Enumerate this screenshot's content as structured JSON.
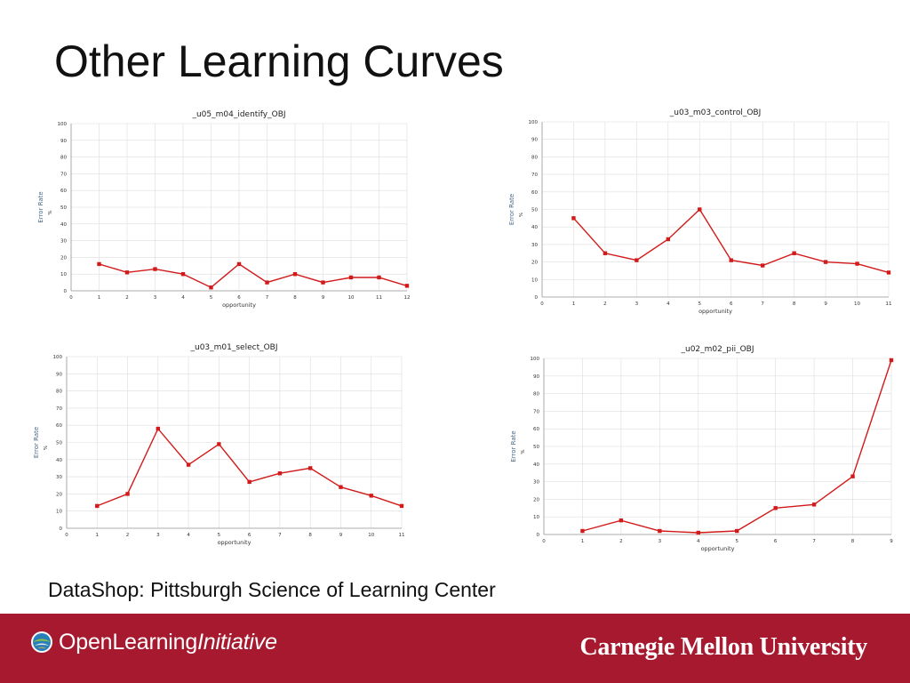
{
  "slide": {
    "title": "Other Learning Curves",
    "credit": "DataShop:  Pittsburgh Science of Learning Center"
  },
  "footer": {
    "logo_left_part1": "OpenLearning",
    "logo_left_part2": "Initiative",
    "logo_right": "Carnegie Mellon University",
    "background_color": "#a6192e"
  },
  "colors": {
    "line": "#d21a1a",
    "grid": "#dddddd",
    "axis": "#999999"
  },
  "chart_data": [
    {
      "type": "line",
      "title": "_u05_m04_identify_OBJ",
      "xlabel": "opportunity",
      "ylabel": "Error Rate",
      "yunit": "%",
      "xlim": [
        0,
        12
      ],
      "ylim": [
        0,
        100
      ],
      "xticks": [
        "0",
        "1",
        "2",
        "3",
        "4",
        "5",
        "6",
        "7",
        "8",
        "9",
        "10",
        "11",
        "12"
      ],
      "yticks": [
        "0",
        "10",
        "20",
        "30",
        "40",
        "50",
        "60",
        "70",
        "80",
        "90",
        "100"
      ],
      "x": [
        1,
        2,
        3,
        4,
        5,
        6,
        7,
        8,
        9,
        10,
        11,
        12
      ],
      "values": [
        16,
        11,
        13,
        10,
        2,
        16,
        5,
        10,
        5,
        8,
        8,
        3
      ],
      "grid": true
    },
    {
      "type": "line",
      "title": "_u03_m03_control_OBJ",
      "xlabel": "opportunity",
      "ylabel": "Error Rate",
      "yunit": "%",
      "xlim": [
        0,
        11
      ],
      "ylim": [
        0,
        100
      ],
      "xticks": [
        "0",
        "1",
        "2",
        "3",
        "4",
        "5",
        "6",
        "7",
        "8",
        "9",
        "10",
        "11"
      ],
      "yticks": [
        "0",
        "10",
        "20",
        "30",
        "40",
        "50",
        "60",
        "70",
        "80",
        "90",
        "100"
      ],
      "x": [
        1,
        2,
        3,
        4,
        5,
        6,
        7,
        8,
        9,
        10,
        11
      ],
      "values": [
        45,
        25,
        21,
        33,
        50,
        21,
        18,
        25,
        20,
        19,
        14
      ],
      "grid": true
    },
    {
      "type": "line",
      "title": "_u03_m01_select_OBJ",
      "xlabel": "opportunity",
      "ylabel": "Error Rate",
      "yunit": "%",
      "xlim": [
        0,
        11
      ],
      "ylim": [
        0,
        100
      ],
      "xticks": [
        "0",
        "1",
        "2",
        "3",
        "4",
        "5",
        "6",
        "7",
        "8",
        "9",
        "10",
        "11"
      ],
      "yticks": [
        "0",
        "10",
        "20",
        "30",
        "40",
        "50",
        "60",
        "70",
        "80",
        "90",
        "100"
      ],
      "x": [
        1,
        2,
        3,
        4,
        5,
        6,
        7,
        8,
        9,
        10,
        11
      ],
      "values": [
        13,
        20,
        58,
        37,
        49,
        27,
        32,
        35,
        24,
        19,
        13
      ],
      "grid": true
    },
    {
      "type": "line",
      "title": "_u02_m02_pii_OBJ",
      "xlabel": "opportunity",
      "ylabel": "Error Rate",
      "yunit": "%",
      "xlim": [
        0,
        9
      ],
      "ylim": [
        0,
        100
      ],
      "xticks": [
        "0",
        "1",
        "2",
        "3",
        "4",
        "5",
        "6",
        "7",
        "8",
        "9"
      ],
      "yticks": [
        "0",
        "10",
        "20",
        "30",
        "40",
        "50",
        "60",
        "70",
        "80",
        "90",
        "100"
      ],
      "x": [
        1,
        2,
        3,
        4,
        5,
        6,
        7,
        8,
        9
      ],
      "values": [
        2,
        8,
        2,
        1,
        2,
        15,
        17,
        33,
        99
      ],
      "grid": true
    }
  ]
}
